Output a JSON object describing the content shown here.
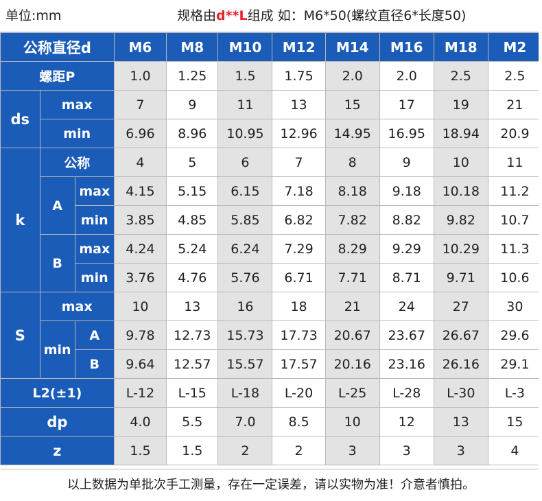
{
  "header": {
    "unit": "单位:mm",
    "spec_prefix": "规格由",
    "spec_red": "d**L",
    "spec_suffix": "组成 如：M6*50(螺纹直径6*长度50)"
  },
  "labels": {
    "diameter": "公称直径d",
    "pitch": "螺距P",
    "ds": "ds",
    "k": "k",
    "s": "S",
    "nominal": "公称",
    "max": "max",
    "min": "min",
    "A": "A",
    "B": "B",
    "l2": "L2(±1)",
    "dp": "dp",
    "z": "z"
  },
  "sizes": [
    "M6",
    "M8",
    "M10",
    "M12",
    "M14",
    "M16",
    "M18",
    "M2"
  ],
  "rows": {
    "pitch": [
      "1.0",
      "1.25",
      "1.5",
      "1.75",
      "2.0",
      "2.0",
      "2.5",
      "2.5"
    ],
    "ds_max": [
      "7",
      "9",
      "11",
      "13",
      "15",
      "17",
      "19",
      "21"
    ],
    "ds_min": [
      "6.96",
      "8.96",
      "10.95",
      "12.96",
      "14.95",
      "16.95",
      "18.94",
      "20.9"
    ],
    "k_nominal": [
      "4",
      "5",
      "6",
      "7",
      "8",
      "9",
      "10",
      "11"
    ],
    "k_a_max": [
      "4.15",
      "5.15",
      "6.15",
      "7.18",
      "8.18",
      "9.18",
      "10.18",
      "11.2"
    ],
    "k_a_min": [
      "3.85",
      "4.85",
      "5.85",
      "6.82",
      "7.82",
      "8.82",
      "9.82",
      "10.7"
    ],
    "k_b_max": [
      "4.24",
      "5.24",
      "6.24",
      "7.29",
      "8.29",
      "9.29",
      "10.29",
      "11.3"
    ],
    "k_b_min": [
      "3.76",
      "4.76",
      "5.76",
      "6.71",
      "7.71",
      "8.71",
      "9.71",
      "10.6"
    ],
    "s_max": [
      "10",
      "13",
      "16",
      "18",
      "21",
      "24",
      "27",
      "30"
    ],
    "s_min_a": [
      "9.78",
      "12.73",
      "15.73",
      "17.73",
      "20.67",
      "23.67",
      "26.67",
      "29.6"
    ],
    "s_min_b": [
      "9.64",
      "12.57",
      "15.57",
      "17.57",
      "20.16",
      "23.16",
      "26.16",
      "29.1"
    ],
    "l2": [
      "L-12",
      "L-15",
      "L-18",
      "L-20",
      "L-25",
      "L-28",
      "L-30",
      "L-3"
    ],
    "dp": [
      "4.0",
      "5.5",
      "7.0",
      "8.5",
      "10",
      "12",
      "13",
      "15"
    ],
    "z": [
      "1.5",
      "1.5",
      "2",
      "2",
      "3",
      "3",
      "3",
      "4"
    ]
  },
  "footer": "以上数据为单批次手工测量，存在一定误差，请以实物为准！介意者慎拍。"
}
